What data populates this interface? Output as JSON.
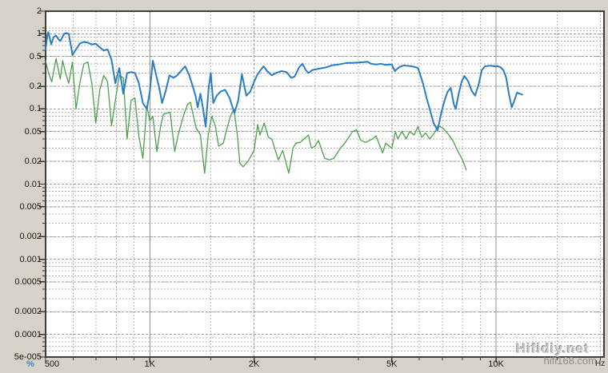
{
  "watermark": {
    "line1": "Hifidiy.net",
    "line2": "hifi168.com"
  },
  "colors": {
    "background": "#d6d2c8",
    "plot_background": "#ffffff",
    "plot_border": "#3f3f3f",
    "grid_minor": "#b7b7b7",
    "grid_major": "#9e9e9e",
    "decade_line": "#8f8f8f",
    "tick": "#333333",
    "series_blue": "#2a7cc7",
    "series_green": "#4aa14a",
    "unit_label": "#3f86c8"
  },
  "chart_data": {
    "type": "line",
    "title": "",
    "grid": true,
    "legend": false,
    "x_axis": {
      "unit": "Hz",
      "scale": "log",
      "min": 500,
      "max": 20500,
      "tick_labels": [
        {
          "value": 500,
          "label": "500"
        },
        {
          "value": 1000,
          "label": "1K"
        },
        {
          "value": 2000,
          "label": "2K"
        },
        {
          "value": 5000,
          "label": "5K"
        },
        {
          "value": 10000,
          "label": "10K"
        }
      ],
      "decade_lines": [
        1000,
        10000
      ],
      "minor_lines": [
        600,
        700,
        800,
        900,
        1500,
        3000,
        4000,
        6000,
        7000,
        8000,
        9000,
        15000,
        20000
      ]
    },
    "y_axis": {
      "unit": "%",
      "scale": "log",
      "min": 5e-05,
      "max": 2,
      "tick_labels": [
        {
          "value": 2,
          "label": "2"
        },
        {
          "value": 1,
          "label": "1"
        },
        {
          "value": 0.5,
          "label": "0.5"
        },
        {
          "value": 0.2,
          "label": "0.2"
        },
        {
          "value": 0.1,
          "label": "0.1"
        },
        {
          "value": 0.05,
          "label": "0.05"
        },
        {
          "value": 0.02,
          "label": "0.02"
        },
        {
          "value": 0.01,
          "label": "0.01"
        },
        {
          "value": 0.005,
          "label": "0.005"
        },
        {
          "value": 0.002,
          "label": "0.002"
        },
        {
          "value": 0.001,
          "label": "0.001"
        },
        {
          "value": 0.0005,
          "label": "0.0005"
        },
        {
          "value": 0.0002,
          "label": "0.0002"
        },
        {
          "value": 0.0001,
          "label": "0.0001"
        },
        {
          "value": 5e-05,
          "label": "5e-005"
        }
      ]
    },
    "series": [
      {
        "name": "green-trace",
        "color": "#4aa14a",
        "width": 1.3,
        "points": [
          [
            500,
            0.44
          ],
          [
            510,
            0.3
          ],
          [
            521,
            0.23
          ],
          [
            536,
            0.47
          ],
          [
            551,
            0.25
          ],
          [
            560,
            0.44
          ],
          [
            571,
            0.3
          ],
          [
            583,
            0.22
          ],
          [
            598,
            0.42
          ],
          [
            612,
            0.1
          ],
          [
            629,
            0.23
          ],
          [
            645,
            0.4
          ],
          [
            662,
            0.42
          ],
          [
            680,
            0.22
          ],
          [
            698,
            0.065
          ],
          [
            717,
            0.18
          ],
          [
            736,
            0.28
          ],
          [
            755,
            0.23
          ],
          [
            775,
            0.06
          ],
          [
            795,
            0.13
          ],
          [
            816,
            0.28
          ],
          [
            838,
            0.26
          ],
          [
            860,
            0.04
          ],
          [
            883,
            0.13
          ],
          [
            906,
            0.14
          ],
          [
            930,
            0.043
          ],
          [
            955,
            0.022
          ],
          [
            980,
            0.11
          ],
          [
            1000,
            0.07
          ],
          [
            1020,
            0.08
          ],
          [
            1048,
            0.027
          ],
          [
            1075,
            0.06
          ],
          [
            1095,
            0.085
          ],
          [
            1120,
            0.088
          ],
          [
            1145,
            0.09
          ],
          [
            1180,
            0.027
          ],
          [
            1210,
            0.047
          ],
          [
            1250,
            0.08
          ],
          [
            1285,
            0.115
          ],
          [
            1310,
            0.123
          ],
          [
            1360,
            0.056
          ],
          [
            1400,
            0.045
          ],
          [
            1440,
            0.014
          ],
          [
            1475,
            0.045
          ],
          [
            1510,
            0.08
          ],
          [
            1545,
            0.06
          ],
          [
            1580,
            0.032
          ],
          [
            1630,
            0.035
          ],
          [
            1670,
            0.055
          ],
          [
            1710,
            0.08
          ],
          [
            1750,
            0.1
          ],
          [
            1790,
            0.045
          ],
          [
            1820,
            0.019
          ],
          [
            1860,
            0.017
          ],
          [
            1920,
            0.02
          ],
          [
            2000,
            0.028
          ],
          [
            2050,
            0.062
          ],
          [
            2080,
            0.045
          ],
          [
            2140,
            0.065
          ],
          [
            2200,
            0.042
          ],
          [
            2250,
            0.04
          ],
          [
            2350,
            0.021
          ],
          [
            2420,
            0.028
          ],
          [
            2520,
            0.014
          ],
          [
            2590,
            0.03
          ],
          [
            2640,
            0.035
          ],
          [
            2720,
            0.036
          ],
          [
            2870,
            0.045
          ],
          [
            2930,
            0.03
          ],
          [
            3000,
            0.032
          ],
          [
            3070,
            0.038
          ],
          [
            3200,
            0.022
          ],
          [
            3300,
            0.021
          ],
          [
            3400,
            0.022
          ],
          [
            3550,
            0.03
          ],
          [
            3640,
            0.034
          ],
          [
            3850,
            0.05
          ],
          [
            3950,
            0.053
          ],
          [
            4070,
            0.038
          ],
          [
            4200,
            0.036
          ],
          [
            4400,
            0.04
          ],
          [
            4500,
            0.044
          ],
          [
            4700,
            0.026
          ],
          [
            4800,
            0.035
          ],
          [
            5000,
            0.03
          ],
          [
            5120,
            0.05
          ],
          [
            5200,
            0.04
          ],
          [
            5350,
            0.05
          ],
          [
            5500,
            0.04
          ],
          [
            5630,
            0.05
          ],
          [
            5800,
            0.045
          ],
          [
            5950,
            0.058
          ],
          [
            6100,
            0.042
          ],
          [
            6260,
            0.048
          ],
          [
            6430,
            0.04
          ],
          [
            6640,
            0.048
          ],
          [
            6800,
            0.06
          ],
          [
            7040,
            0.055
          ],
          [
            7230,
            0.048
          ],
          [
            7500,
            0.038
          ],
          [
            7740,
            0.028
          ],
          [
            8000,
            0.021
          ],
          [
            8200,
            0.0155
          ]
        ]
      },
      {
        "name": "blue-trace",
        "color": "#2a7cc7",
        "width": 2,
        "points": [
          [
            500,
            0.62
          ],
          [
            506,
            0.95
          ],
          [
            509,
            1.05
          ],
          [
            514,
            0.88
          ],
          [
            519,
            0.72
          ],
          [
            527,
            0.9
          ],
          [
            536,
            0.95
          ],
          [
            544,
            0.85
          ],
          [
            551,
            0.8
          ],
          [
            559,
            0.9
          ],
          [
            566,
            1.0
          ],
          [
            575,
            1.02
          ],
          [
            583,
            1.0
          ],
          [
            590,
            0.75
          ],
          [
            598,
            0.52
          ],
          [
            612,
            0.62
          ],
          [
            628,
            0.74
          ],
          [
            645,
            0.78
          ],
          [
            662,
            0.76
          ],
          [
            680,
            0.72
          ],
          [
            698,
            0.74
          ],
          [
            717,
            0.66
          ],
          [
            736,
            0.6
          ],
          [
            755,
            0.62
          ],
          [
            775,
            0.45
          ],
          [
            795,
            0.22
          ],
          [
            816,
            0.35
          ],
          [
            838,
            0.16
          ],
          [
            860,
            0.3
          ],
          [
            883,
            0.31
          ],
          [
            906,
            0.3
          ],
          [
            930,
            0.22
          ],
          [
            955,
            0.12
          ],
          [
            980,
            0.1
          ],
          [
            1000,
            0.17
          ],
          [
            1020,
            0.44
          ],
          [
            1045,
            0.27
          ],
          [
            1065,
            0.19
          ],
          [
            1085,
            0.12
          ],
          [
            1110,
            0.17
          ],
          [
            1140,
            0.28
          ],
          [
            1170,
            0.26
          ],
          [
            1200,
            0.28
          ],
          [
            1230,
            0.32
          ],
          [
            1265,
            0.37
          ],
          [
            1300,
            0.28
          ],
          [
            1330,
            0.2
          ],
          [
            1355,
            0.15
          ],
          [
            1375,
            0.105
          ],
          [
            1400,
            0.16
          ],
          [
            1425,
            0.1
          ],
          [
            1450,
            0.058
          ],
          [
            1480,
            0.2
          ],
          [
            1500,
            0.3
          ],
          [
            1525,
            0.12
          ],
          [
            1560,
            0.15
          ],
          [
            1600,
            0.17
          ],
          [
            1650,
            0.18
          ],
          [
            1700,
            0.14
          ],
          [
            1755,
            0.088
          ],
          [
            1800,
            0.13
          ],
          [
            1845,
            0.29
          ],
          [
            1900,
            0.15
          ],
          [
            1950,
            0.17
          ],
          [
            2000,
            0.23
          ],
          [
            2040,
            0.28
          ],
          [
            2090,
            0.33
          ],
          [
            2130,
            0.37
          ],
          [
            2180,
            0.32
          ],
          [
            2250,
            0.28
          ],
          [
            2310,
            0.3
          ],
          [
            2400,
            0.32
          ],
          [
            2480,
            0.31
          ],
          [
            2560,
            0.26
          ],
          [
            2620,
            0.27
          ],
          [
            2700,
            0.36
          ],
          [
            2760,
            0.4
          ],
          [
            2820,
            0.33
          ],
          [
            2870,
            0.3
          ],
          [
            2950,
            0.33
          ],
          [
            3050,
            0.34
          ],
          [
            3150,
            0.35
          ],
          [
            3250,
            0.36
          ],
          [
            3350,
            0.38
          ],
          [
            3500,
            0.39
          ],
          [
            3600,
            0.4
          ],
          [
            3700,
            0.41
          ],
          [
            3850,
            0.41
          ],
          [
            4000,
            0.415
          ],
          [
            4150,
            0.42
          ],
          [
            4250,
            0.425
          ],
          [
            4350,
            0.4
          ],
          [
            4500,
            0.39
          ],
          [
            4650,
            0.4
          ],
          [
            4800,
            0.385
          ],
          [
            4900,
            0.39
          ],
          [
            5000,
            0.39
          ],
          [
            5100,
            0.32
          ],
          [
            5250,
            0.36
          ],
          [
            5400,
            0.38
          ],
          [
            5550,
            0.375
          ],
          [
            5700,
            0.37
          ],
          [
            5850,
            0.36
          ],
          [
            5950,
            0.35
          ],
          [
            6150,
            0.22
          ],
          [
            6300,
            0.14
          ],
          [
            6450,
            0.095
          ],
          [
            6600,
            0.065
          ],
          [
            6780,
            0.052
          ],
          [
            6950,
            0.09
          ],
          [
            7100,
            0.13
          ],
          [
            7250,
            0.17
          ],
          [
            7400,
            0.19
          ],
          [
            7550,
            0.115
          ],
          [
            7650,
            0.1
          ],
          [
            7800,
            0.16
          ],
          [
            7950,
            0.23
          ],
          [
            8100,
            0.275
          ],
          [
            8300,
            0.235
          ],
          [
            8500,
            0.175
          ],
          [
            8700,
            0.15
          ],
          [
            8900,
            0.21
          ],
          [
            9100,
            0.33
          ],
          [
            9300,
            0.37
          ],
          [
            9500,
            0.375
          ],
          [
            9700,
            0.375
          ],
          [
            9900,
            0.37
          ],
          [
            10100,
            0.37
          ],
          [
            10300,
            0.36
          ],
          [
            10500,
            0.33
          ],
          [
            10700,
            0.26
          ],
          [
            10900,
            0.155
          ],
          [
            11100,
            0.105
          ],
          [
            11300,
            0.13
          ],
          [
            11500,
            0.165
          ],
          [
            11700,
            0.16
          ],
          [
            11900,
            0.155
          ]
        ]
      }
    ]
  }
}
